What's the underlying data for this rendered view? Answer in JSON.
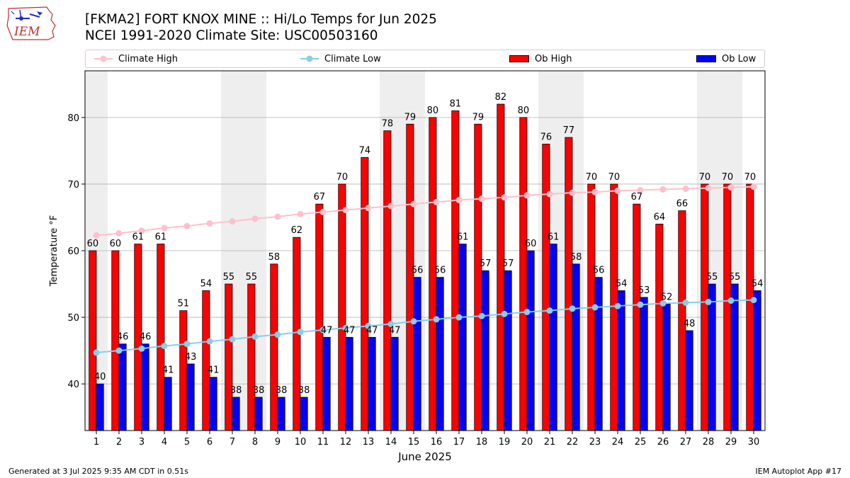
{
  "header": {
    "logo_text": "IEM",
    "title_line1": "[FKMA2] FORT KNOX MINE :: Hi/Lo Temps for Jun 2025",
    "title_line2": "NCEI 1991-2020 Climate Site: USC00503160"
  },
  "legend": {
    "climate_high": "Climate High",
    "climate_low": "Climate Low",
    "ob_high": "Ob High",
    "ob_low": "Ob Low"
  },
  "footer": {
    "left": "Generated at 3 Jul 2025 9:35 AM CDT in 0.51s",
    "right": "IEM Autoplot App #17"
  },
  "colors": {
    "ob_high": "#ff0000",
    "ob_low": "#0000ff",
    "climate_high": "#ffc0cb",
    "climate_low": "#87ceeb",
    "weekend_shade": "#eeeeee",
    "grid": "#b0b0b0"
  },
  "chart_data": {
    "type": "bar",
    "title": "[FKMA2] FORT KNOX MINE :: Hi/Lo Temps for Jun 2025",
    "subtitle": "NCEI 1991-2020 Climate Site: USC00503160",
    "xlabel": "June 2025",
    "ylabel": "Temperature °F",
    "ylim": [
      33,
      87
    ],
    "yticks": [
      40,
      50,
      60,
      70,
      80
    ],
    "grid": true,
    "legend_position": "top",
    "categories": [
      "1",
      "2",
      "3",
      "4",
      "5",
      "6",
      "7",
      "8",
      "9",
      "10",
      "11",
      "12",
      "13",
      "14",
      "15",
      "16",
      "17",
      "18",
      "19",
      "20",
      "21",
      "22",
      "23",
      "24",
      "25",
      "26",
      "27",
      "28",
      "29",
      "30"
    ],
    "shaded_days": [
      1,
      7,
      8,
      14,
      15,
      21,
      22,
      28,
      29
    ],
    "series": [
      {
        "name": "Ob High",
        "kind": "bar",
        "color": "#ff0000",
        "values": [
          60,
          60,
          61,
          61,
          51,
          54,
          55,
          55,
          58,
          62,
          67,
          70,
          74,
          78,
          79,
          80,
          81,
          79,
          82,
          80,
          76,
          77,
          70,
          70,
          67,
          64,
          66,
          70,
          70,
          70
        ]
      },
      {
        "name": "Ob Low",
        "kind": "bar",
        "color": "#0000ff",
        "values": [
          40,
          46,
          46,
          41,
          43,
          41,
          38,
          38,
          38,
          38,
          47,
          47,
          47,
          47,
          56,
          56,
          61,
          57,
          57,
          60,
          61,
          58,
          56,
          54,
          53,
          52,
          48,
          55,
          55,
          54
        ]
      },
      {
        "name": "Climate High",
        "kind": "line",
        "color": "#ffc0cb",
        "values": [
          62.3,
          62.6,
          63.0,
          63.4,
          63.7,
          64.1,
          64.4,
          64.8,
          65.1,
          65.5,
          65.8,
          66.1,
          66.4,
          66.7,
          67.0,
          67.3,
          67.6,
          67.8,
          68.0,
          68.3,
          68.5,
          68.7,
          68.8,
          69.0,
          69.1,
          69.2,
          69.3,
          69.4,
          69.5,
          69.6
        ]
      },
      {
        "name": "Climate Low",
        "kind": "line",
        "color": "#87ceeb",
        "values": [
          44.7,
          45.0,
          45.3,
          45.7,
          46.0,
          46.4,
          46.7,
          47.1,
          47.4,
          47.8,
          48.1,
          48.4,
          48.7,
          49.0,
          49.4,
          49.7,
          50.0,
          50.2,
          50.5,
          50.8,
          51.0,
          51.3,
          51.5,
          51.7,
          51.9,
          52.1,
          52.2,
          52.3,
          52.5,
          52.6
        ]
      }
    ]
  }
}
